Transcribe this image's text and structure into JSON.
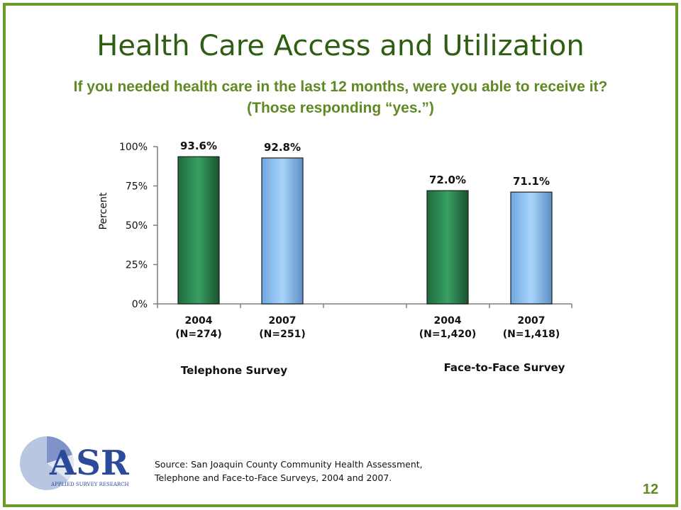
{
  "slide": {
    "title": "Health Care Access and Utilization",
    "subtitle": "If you needed health care in the last 12 months, were you able to receive it? (Those responding “yes.”)",
    "source": "Source: San Joaquin County Community Health Assessment,\nTelephone and Face-to-Face Surveys, 2004  and 2007.",
    "page_number": "12",
    "logo": {
      "text": "ASR",
      "caption": "APPLIED SURVEY RESEARCH"
    }
  },
  "colors": {
    "frame": "#6b9a2a",
    "title": "#2e5e12",
    "accent": "#5f8a23",
    "bar_2004": "#2e8a55",
    "bar_2007": "#8fc3f5"
  },
  "chart_data": {
    "type": "bar",
    "ylabel": "Percent",
    "ylim": [
      0,
      100
    ],
    "yticks": [
      "0%",
      "25%",
      "50%",
      "75%",
      "100%"
    ],
    "categories": [
      "2004\n(N=274)",
      "2007\n(N=251)",
      "2004\n(N=1,420)",
      "2007\n(N=1,418)"
    ],
    "values": [
      93.6,
      92.8,
      72.0,
      71.1
    ],
    "value_labels": [
      "93.6%",
      "92.8%",
      "72.0%",
      "71.1%"
    ],
    "groups": [
      "Telephone Survey",
      "Face-to-Face Survey"
    ],
    "bar_colors": [
      "#2e8a55",
      "#8fc3f5",
      "#2e8a55",
      "#8fc3f5"
    ],
    "grid": false
  }
}
